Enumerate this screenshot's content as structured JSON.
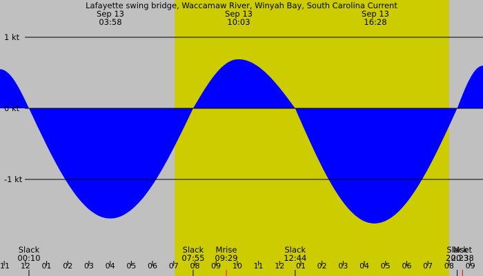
{
  "chart_data": {
    "type": "area",
    "title": "Lafayette swing bridge, Waccamaw River, Winyah Bay, South Carolina Current",
    "ylabel": "",
    "xlabel": "",
    "ylim": [
      -2.0,
      1.5
    ],
    "y_ticks": [
      {
        "value": 1,
        "label": "1 kt"
      },
      {
        "value": 0,
        "label": "0 kt"
      },
      {
        "value": -1,
        "label": "-1 kt"
      }
    ],
    "x_hours_range": [
      -1.2,
      21.6
    ],
    "x_tick_labels": [
      "11",
      "12",
      "01",
      "02",
      "03",
      "04",
      "05",
      "06",
      "07",
      "08",
      "09",
      "10",
      "11",
      "12",
      "01",
      "02",
      "03",
      "04",
      "05",
      "06",
      "07",
      "08",
      "09"
    ],
    "x_tick_start_hour": -1,
    "series": [
      {
        "x_hours": [
          -1.2,
          0.167,
          4.0,
          7.917,
          10.05,
          12.733,
          16.467,
          20.383,
          21.6
        ],
        "y_kt": [
          0.55,
          0.0,
          -1.55,
          0.0,
          0.69,
          0.0,
          -1.62,
          0.0,
          0.6
        ]
      }
    ],
    "daylight_hours": [
      7.05,
      20.0
    ],
    "header_events": [
      {
        "date": "Sep 13",
        "time": "03:58"
      },
      {
        "date": "Sep 13",
        "time": "10:03"
      },
      {
        "date": "Sep 13",
        "time": "16:28"
      }
    ],
    "bottom_events": [
      {
        "label": "Slack",
        "time": "00:10",
        "hour": 0.167
      },
      {
        "label": "Slack",
        "time": "07:55",
        "hour": 7.917
      },
      {
        "label": "Mrise",
        "time": "09:29",
        "hour": 9.483
      },
      {
        "label": "Slack",
        "time": "12:44",
        "hour": 12.733
      },
      {
        "label": "Slack",
        "time": "20:23",
        "hour": 20.383
      },
      {
        "label": "Mset",
        "time": "20:38",
        "hour": 20.633
      }
    ],
    "colors": {
      "background": "#c0c0c0",
      "daylight": "#cccc00",
      "flood": "#0000ff",
      "ebb": "#2e8b57",
      "grid": "#000000",
      "moon_mark": "#ff0000"
    }
  }
}
